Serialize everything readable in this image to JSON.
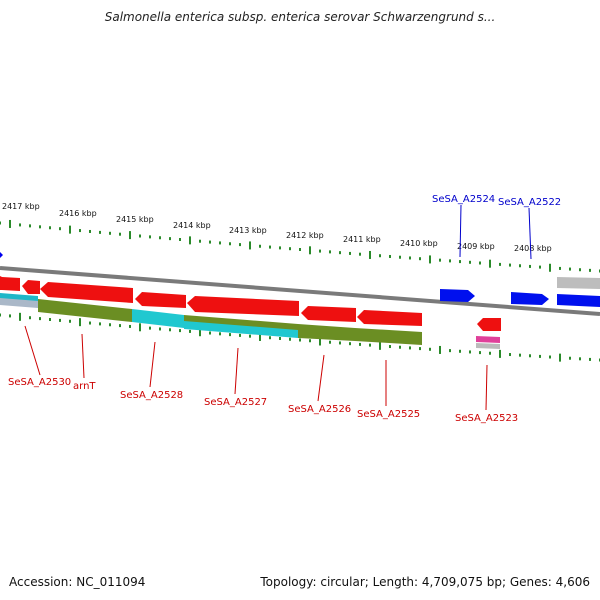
{
  "title": "Salmonella enterica subsp. enterica serovar Schwarzengrund s...",
  "footer": {
    "accession": "Accession: NC_011094",
    "summary": "Topology: circular; Length: 4,709,075 bp; Genes: 4,606"
  },
  "colors": {
    "backbone": "#888888",
    "forward_gene": "#0000ee",
    "reverse_gene": "#ee0000",
    "forward_label": "#0000cc",
    "reverse_label": "#cc0000",
    "ticks": "#2a8a2a",
    "band_olive": "#6b8e23",
    "band_cyan": "#20c8d0",
    "band_gray": "#bbbbbb",
    "band_pink": "#e0409a"
  },
  "scale_ticks": [
    "2417 kbp",
    "2416 kbp",
    "2415 kbp",
    "2414 kbp",
    "2413 kbp",
    "2412 kbp",
    "2411 kbp",
    "2410 kbp",
    "2409 kbp",
    "2408 kbp"
  ],
  "forward_genes": [
    "SeSA_A2524",
    "SeSA_A2522"
  ],
  "reverse_genes": [
    "SeSA_A2530",
    "arnT",
    "SeSA_A2528",
    "SeSA_A2527",
    "SeSA_A2526",
    "SeSA_A2525",
    "SeSA_A2523"
  ]
}
